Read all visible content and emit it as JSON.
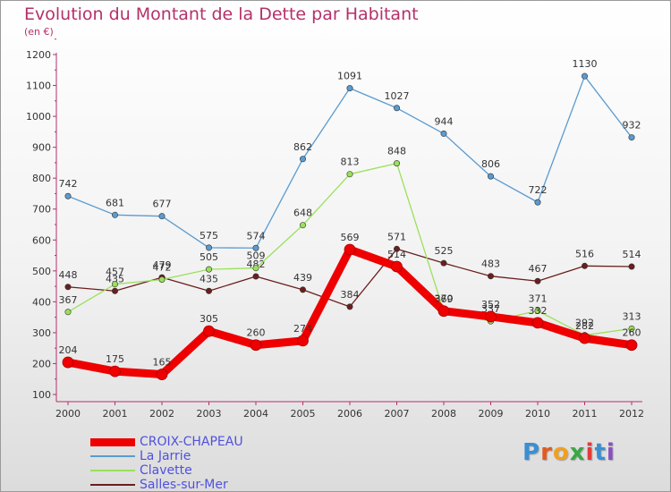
{
  "title": "Evolution du Montant de la Dette par Habitant",
  "subtitle": "(en €)",
  "logo": [
    "P",
    "r",
    "o",
    "x",
    "i",
    "t",
    "i"
  ],
  "chart_data": {
    "type": "line",
    "title": "Evolution du Montant de la Dette par Habitant",
    "unit": "(en €)",
    "x": [
      "2000",
      "2001",
      "2002",
      "2003",
      "2004",
      "2005",
      "2006",
      "2007",
      "2008",
      "2009",
      "2010",
      "2011",
      "2012"
    ],
    "ylim": [
      100,
      1200
    ],
    "yticks": [
      100,
      200,
      300,
      400,
      500,
      600,
      700,
      800,
      900,
      1000,
      1100,
      1200
    ],
    "grid": false,
    "legend_position": "bottom-left",
    "series": [
      {
        "name": "CROIX-CHAPEAU",
        "color": "#ee0000",
        "values": [
          204,
          175,
          165,
          305,
          260,
          274,
          569,
          514,
          370,
          352,
          332,
          282,
          260
        ]
      },
      {
        "name": "La Jarrie",
        "color": "#5a9bd0",
        "values": [
          742,
          681,
          677,
          575,
          574,
          862,
          1091,
          1027,
          944,
          806,
          722,
          1130,
          932
        ]
      },
      {
        "name": "Clavette",
        "color": "#9be05a",
        "values": [
          367,
          457,
          472,
          505,
          509,
          648,
          813,
          848,
          369,
          337,
          371,
          292,
          313
        ]
      },
      {
        "name": "Salles-sur-Mer",
        "color": "#6b1e1e",
        "values": [
          448,
          435,
          479,
          435,
          482,
          439,
          384,
          571,
          525,
          483,
          467,
          516,
          514
        ]
      }
    ]
  }
}
